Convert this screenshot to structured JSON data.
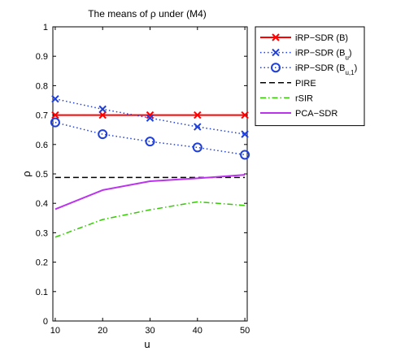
{
  "chart_data": {
    "type": "line",
    "title": "The means of ρ under (M4)",
    "xlabel": "u",
    "ylabel": "ρ",
    "x": [
      10,
      20,
      30,
      40,
      50
    ],
    "xlim": [
      9.5,
      50.5
    ],
    "ylim": [
      0,
      1
    ],
    "xticks": [
      "10",
      "20",
      "30",
      "40",
      "50"
    ],
    "yticks": [
      "0",
      "0.1",
      "0.2",
      "0.3",
      "0.4",
      "0.5",
      "0.6",
      "0.7",
      "0.8",
      "0.9",
      "1"
    ],
    "ytick_values": [
      0,
      0.1,
      0.2,
      0.3,
      0.4,
      0.5,
      0.6,
      0.7,
      0.8,
      0.9,
      1
    ],
    "grid": false,
    "legend_position": "outside-right",
    "series": [
      {
        "name": "iRP−SDR (B)",
        "label_main": "iRP−SDR (B)",
        "label_sub": "",
        "label_tail": "",
        "values": [
          0.7,
          0.7,
          0.7,
          0.7,
          0.7
        ],
        "color": "#ff0000",
        "dash": "solid",
        "marker": "x"
      },
      {
        "name": "iRP−SDR (B_u)",
        "label_main": "iRP−SDR (B",
        "label_sub": "u",
        "label_tail": ")",
        "values": [
          0.755,
          0.72,
          0.69,
          0.66,
          0.635
        ],
        "color": "#1f3fdd",
        "dash": "dotted",
        "marker": "x"
      },
      {
        "name": "iRP−SDR (B_u,1)",
        "label_main": "iRP−SDR (B",
        "label_sub": "u,1",
        "label_tail": ")",
        "values": [
          0.675,
          0.635,
          0.61,
          0.59,
          0.565
        ],
        "color": "#1f3fdd",
        "dash": "dotted",
        "marker": "o"
      },
      {
        "name": "PIRE",
        "label_main": "PIRE",
        "label_sub": "",
        "label_tail": "",
        "values": [
          0.488,
          0.488,
          0.488,
          0.488,
          0.488
        ],
        "color": "#000000",
        "dash": "dashed",
        "marker": "none"
      },
      {
        "name": "rSIR",
        "label_main": "rSIR",
        "label_sub": "",
        "label_tail": "",
        "values": [
          0.285,
          0.345,
          0.378,
          0.405,
          0.393
        ],
        "color": "#33cc00",
        "dash": "dashdot",
        "marker": "none"
      },
      {
        "name": "PCA−SDR",
        "label_main": "PCA−SDR",
        "label_sub": "",
        "label_tail": "",
        "values": [
          0.38,
          0.445,
          0.475,
          0.485,
          0.497
        ],
        "color": "#bb33ee",
        "dash": "solid",
        "marker": "none"
      }
    ]
  }
}
